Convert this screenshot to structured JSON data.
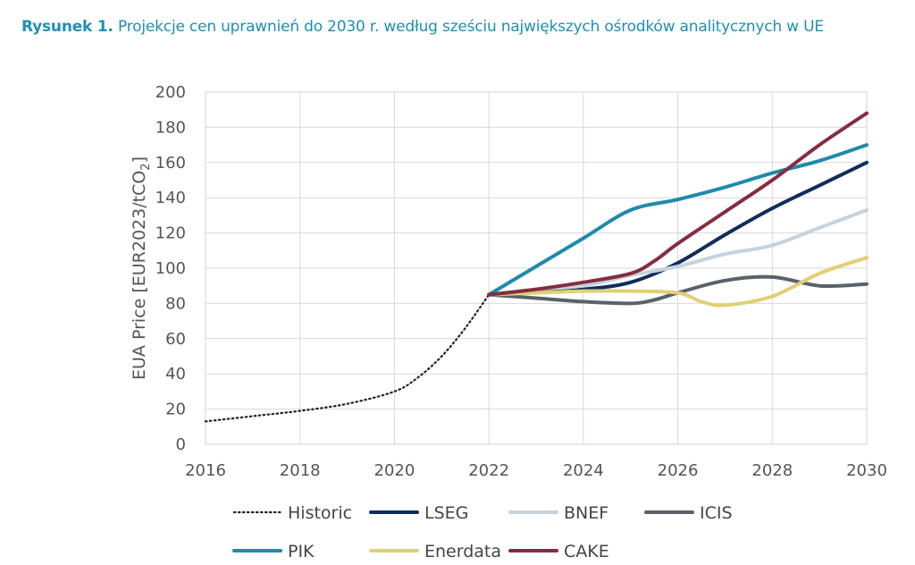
{
  "figure": {
    "label": "Rysunek 1.",
    "caption": "Projekcje cen uprawnień do 2030 r. według sześciu największych ośrodków analitycznych w UE"
  },
  "chart_data": {
    "type": "line",
    "title": "",
    "xlabel": "",
    "ylabel": "EUA Price [EUR2023/tCO",
    "ylabel_subscript": "2",
    "ylabel_suffix": "]",
    "xlim": [
      2016,
      2030
    ],
    "ylim": [
      0,
      200
    ],
    "xticks": [
      "2016",
      "2018",
      "2020",
      "2022",
      "2024",
      "2026",
      "2028",
      "2030"
    ],
    "yticks": [
      "0",
      "20",
      "40",
      "60",
      "80",
      "100",
      "120",
      "140",
      "160",
      "180",
      "200"
    ],
    "grid": true,
    "legend_position": "bottom",
    "series": [
      {
        "name": "Historic",
        "color": "#222222",
        "style": "dotted",
        "x": [
          2016,
          2017,
          2018,
          2019,
          2020,
          2020.5,
          2021,
          2021.5,
          2022
        ],
        "y": [
          13,
          16,
          19,
          23,
          30,
          38,
          50,
          66,
          85
        ]
      },
      {
        "name": "LSEG",
        "color": "#0f2d5c",
        "style": "solid",
        "x": [
          2022,
          2023,
          2024,
          2025,
          2026,
          2027,
          2028,
          2029,
          2030
        ],
        "y": [
          85,
          87,
          88,
          92,
          103,
          119,
          134,
          147,
          160
        ]
      },
      {
        "name": "BNEF",
        "color": "#c6d3dc",
        "style": "solid",
        "x": [
          2022,
          2023,
          2024,
          2025,
          2026,
          2027,
          2028,
          2029,
          2030
        ],
        "y": [
          85,
          88,
          90,
          96,
          101,
          108,
          113,
          123,
          133
        ]
      },
      {
        "name": "ICIS",
        "color": "#59626b",
        "style": "solid",
        "x": [
          2022,
          2023,
          2024,
          2025,
          2025.5,
          2026,
          2027,
          2028,
          2029,
          2030
        ],
        "y": [
          85,
          83,
          81,
          80,
          82,
          86,
          93,
          95,
          90,
          91
        ]
      },
      {
        "name": "PIK",
        "color": "#1f8aab",
        "style": "solid",
        "x": [
          2022,
          2023,
          2024,
          2025,
          2026,
          2027,
          2028,
          2029,
          2030
        ],
        "y": [
          85,
          101,
          117,
          133,
          139,
          146,
          154,
          161,
          170
        ]
      },
      {
        "name": "Enerdata",
        "color": "#e2cf76",
        "style": "solid",
        "x": [
          2022,
          2023,
          2024,
          2025,
          2026,
          2026.5,
          2027,
          2028,
          2029,
          2030
        ],
        "y": [
          85,
          86,
          87,
          87,
          86,
          81,
          79,
          84,
          97,
          106
        ]
      },
      {
        "name": "CAKE",
        "color": "#852d40",
        "style": "solid",
        "x": [
          2022,
          2023,
          2024,
          2025,
          2025.5,
          2026,
          2027,
          2028,
          2029,
          2030
        ],
        "y": [
          85,
          88,
          92,
          97,
          104,
          114,
          132,
          150,
          170,
          188
        ]
      }
    ],
    "legend_rows": [
      [
        "Historic",
        "LSEG",
        "BNEF",
        "ICIS"
      ],
      [
        "PIK",
        "Enerdata",
        "CAKE"
      ]
    ]
  }
}
